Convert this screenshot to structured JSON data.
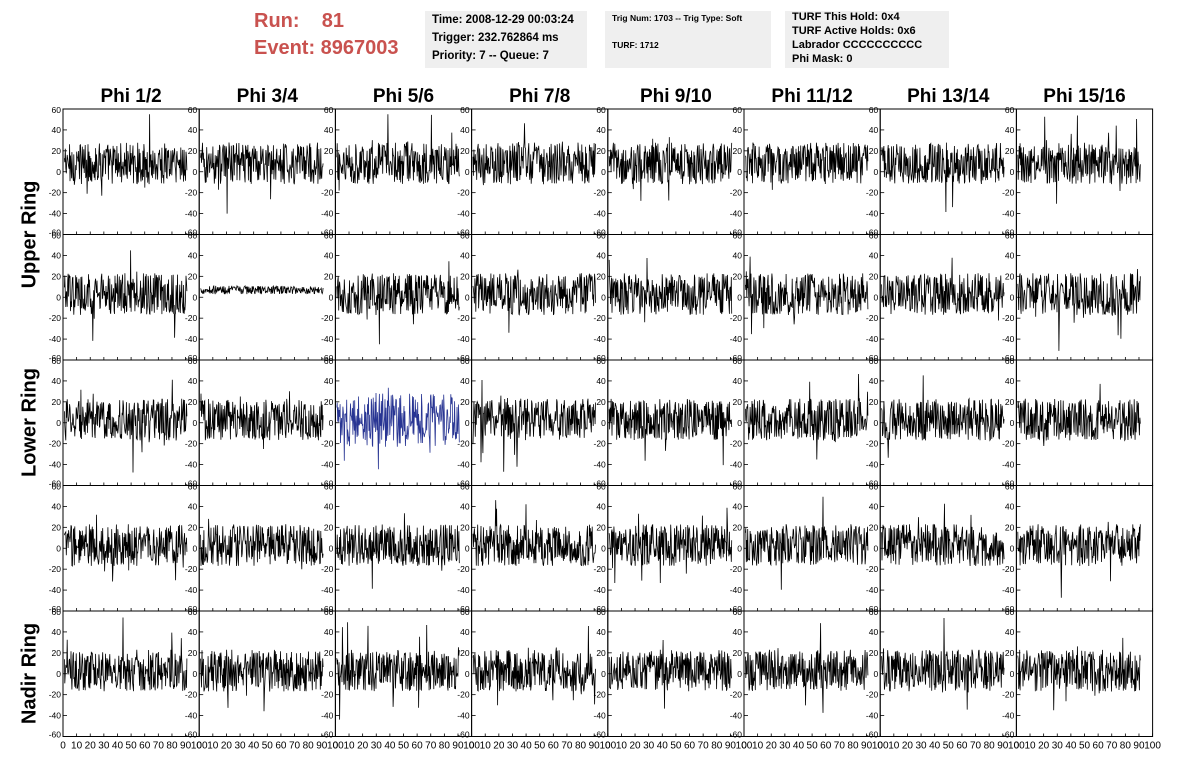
{
  "header": {
    "run_label": "Run:    81",
    "event_label": "Event: 8967003"
  },
  "info_panels": {
    "time_lines": [
      "Time: 2008-12-29 00:03:24",
      "Trigger: 232.762864 ms",
      "Priority: 7 -- Queue: 7"
    ],
    "trig_lines": [
      "Trig Num: 1703 -- Trig Type: Soft",
      "TURF: 1712"
    ],
    "turf_lines": [
      "TURF This Hold: 0x4",
      "TURF Active Holds: 0x6",
      "Labrador CCCCCCCCCC",
      "Phi Mask: 0"
    ]
  },
  "columns": [
    "Phi 1/2",
    "Phi 3/4",
    "Phi 5/6",
    "Phi 7/8",
    "Phi 9/10",
    "Phi 11/12",
    "Phi 13/14",
    "Phi 15/16"
  ],
  "ring_labels": [
    "Upper Ring",
    "Lower Ring",
    "Nadir Ring"
  ],
  "axis": {
    "y_ticks": [
      "60",
      "40",
      "20",
      "0",
      "-20",
      "-40",
      "-60"
    ],
    "x_tick_labels": [
      "0",
      "10",
      "20",
      "30",
      "40",
      "50",
      "60",
      "70",
      "80",
      "90",
      "100"
    ]
  },
  "colors": {
    "run_event": "#c9524f",
    "trace": "#000000",
    "highlight_trace": "#283593",
    "info_bg": "#efefef"
  },
  "chart_data": {
    "type": "line",
    "layout": "5 rows x 8 columns of waveform panels",
    "rows": 5,
    "cols": 8,
    "xlim": [
      0,
      100
    ],
    "ylim": [
      -60,
      60
    ],
    "highlighted_panel": {
      "row": 2,
      "col": 2
    },
    "low_amplitude_panel": {
      "row": 1,
      "col": 1
    },
    "xlabel": "",
    "ylabel": ""
  }
}
